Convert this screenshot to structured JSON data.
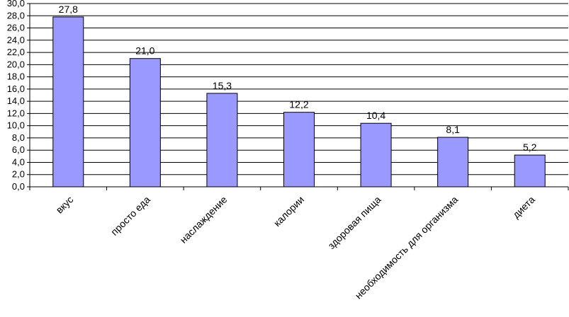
{
  "chart_data": {
    "type": "bar",
    "title": "",
    "xlabel": "",
    "ylabel": "",
    "ylim": [
      0,
      30
    ],
    "ytick_step": 2,
    "ytick_labels": [
      "0,0",
      "2,0",
      "4,0",
      "6,0",
      "8,0",
      "10,0",
      "12,0",
      "14,0",
      "16,0",
      "18,0",
      "20,0",
      "22,0",
      "24,0",
      "26,0",
      "28,0",
      "30,0"
    ],
    "grid": true,
    "legend": "none",
    "categories": [
      "вкус",
      "просто еда",
      "наслаждение",
      "калории",
      "здоровая пища",
      "необходимость для организма",
      "диета"
    ],
    "values": [
      27.8,
      21.0,
      15.3,
      12.2,
      10.4,
      8.1,
      5.2
    ],
    "data_labels": [
      "27,8",
      "21,0",
      "15,3",
      "12,2",
      "10,4",
      "8,1",
      "5,2"
    ],
    "bar_color": "#9999ff"
  }
}
